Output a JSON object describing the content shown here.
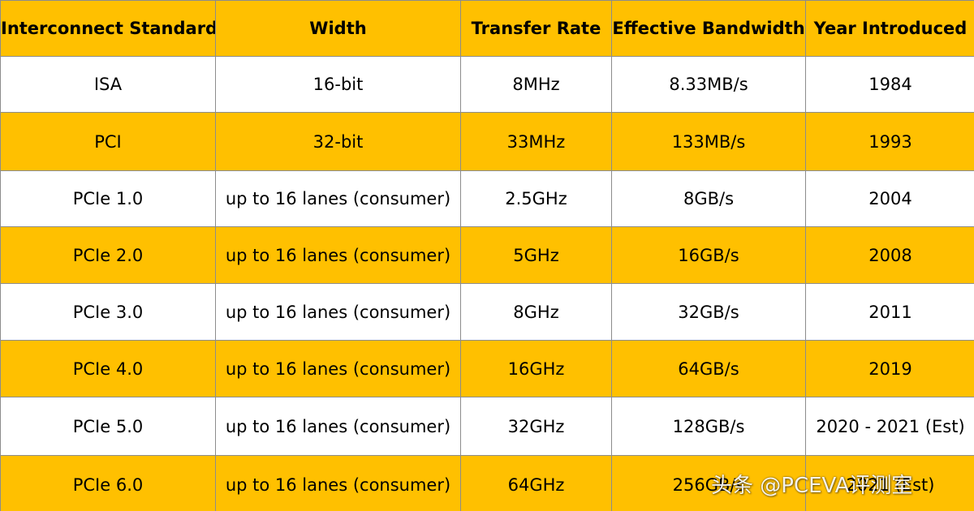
{
  "table": {
    "headers": [
      "Interconnect Standard",
      "Width",
      "Transfer Rate",
      "Effective Bandwidth",
      "Year Introduced"
    ],
    "rows": [
      [
        "ISA",
        "16-bit",
        "8MHz",
        "8.33MB/s",
        "1984"
      ],
      [
        "PCI",
        "32-bit",
        "33MHz",
        "133MB/s",
        "1993"
      ],
      [
        "PCIe 1.0",
        "up to 16 lanes (consumer)",
        "2.5GHz",
        "8GB/s",
        "2004"
      ],
      [
        "PCIe 2.0",
        "up to 16 lanes (consumer)",
        "5GHz",
        "16GB/s",
        "2008"
      ],
      [
        "PCIe 3.0",
        "up to 16 lanes (consumer)",
        "8GHz",
        "32GB/s",
        "2011"
      ],
      [
        "PCIe 4.0",
        "up to 16 lanes (consumer)",
        "16GHz",
        "64GB/s",
        "2019"
      ],
      [
        "PCIe 5.0",
        "up to 16 lanes (consumer)",
        "32GHz",
        "128GB/s",
        "2020 - 2021 (Est)"
      ],
      [
        "PCIe 6.0",
        "up to 16 lanes (consumer)",
        "64GHz",
        "256GB/s",
        "2021 (Est)"
      ]
    ]
  },
  "watermark": {
    "text": "头条 @PCEVA评测室"
  },
  "colors": {
    "accent_gold": "#ffc000",
    "row_white": "#ffffff",
    "border": "#8c8c8c"
  }
}
